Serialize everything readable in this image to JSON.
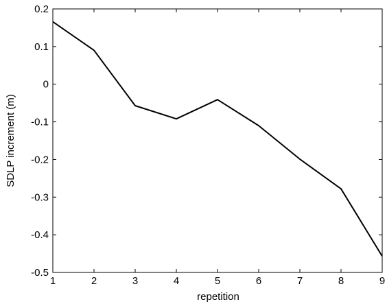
{
  "chart_data": {
    "type": "line",
    "title": "",
    "xlabel": "repetition",
    "ylabel": "SDLP increment (m)",
    "xlim": [
      1,
      9
    ],
    "ylim": [
      -0.5,
      0.2
    ],
    "grid": false,
    "legend": "none",
    "x_ticks": [
      "1",
      "2",
      "3",
      "4",
      "5",
      "6",
      "7",
      "8",
      "9"
    ],
    "y_ticks": [
      "-0.5",
      "-0.4",
      "-0.3",
      "-0.2",
      "-0.1",
      "0",
      "0.1",
      "0.2"
    ],
    "series": [
      {
        "color": "#000000",
        "x": [
          1,
          2,
          3,
          4,
          5,
          6,
          7,
          8,
          9
        ],
        "y": [
          0.166,
          0.09,
          -0.057,
          -0.092,
          -0.041,
          -0.11,
          -0.199,
          -0.278,
          -0.457
        ]
      }
    ]
  }
}
